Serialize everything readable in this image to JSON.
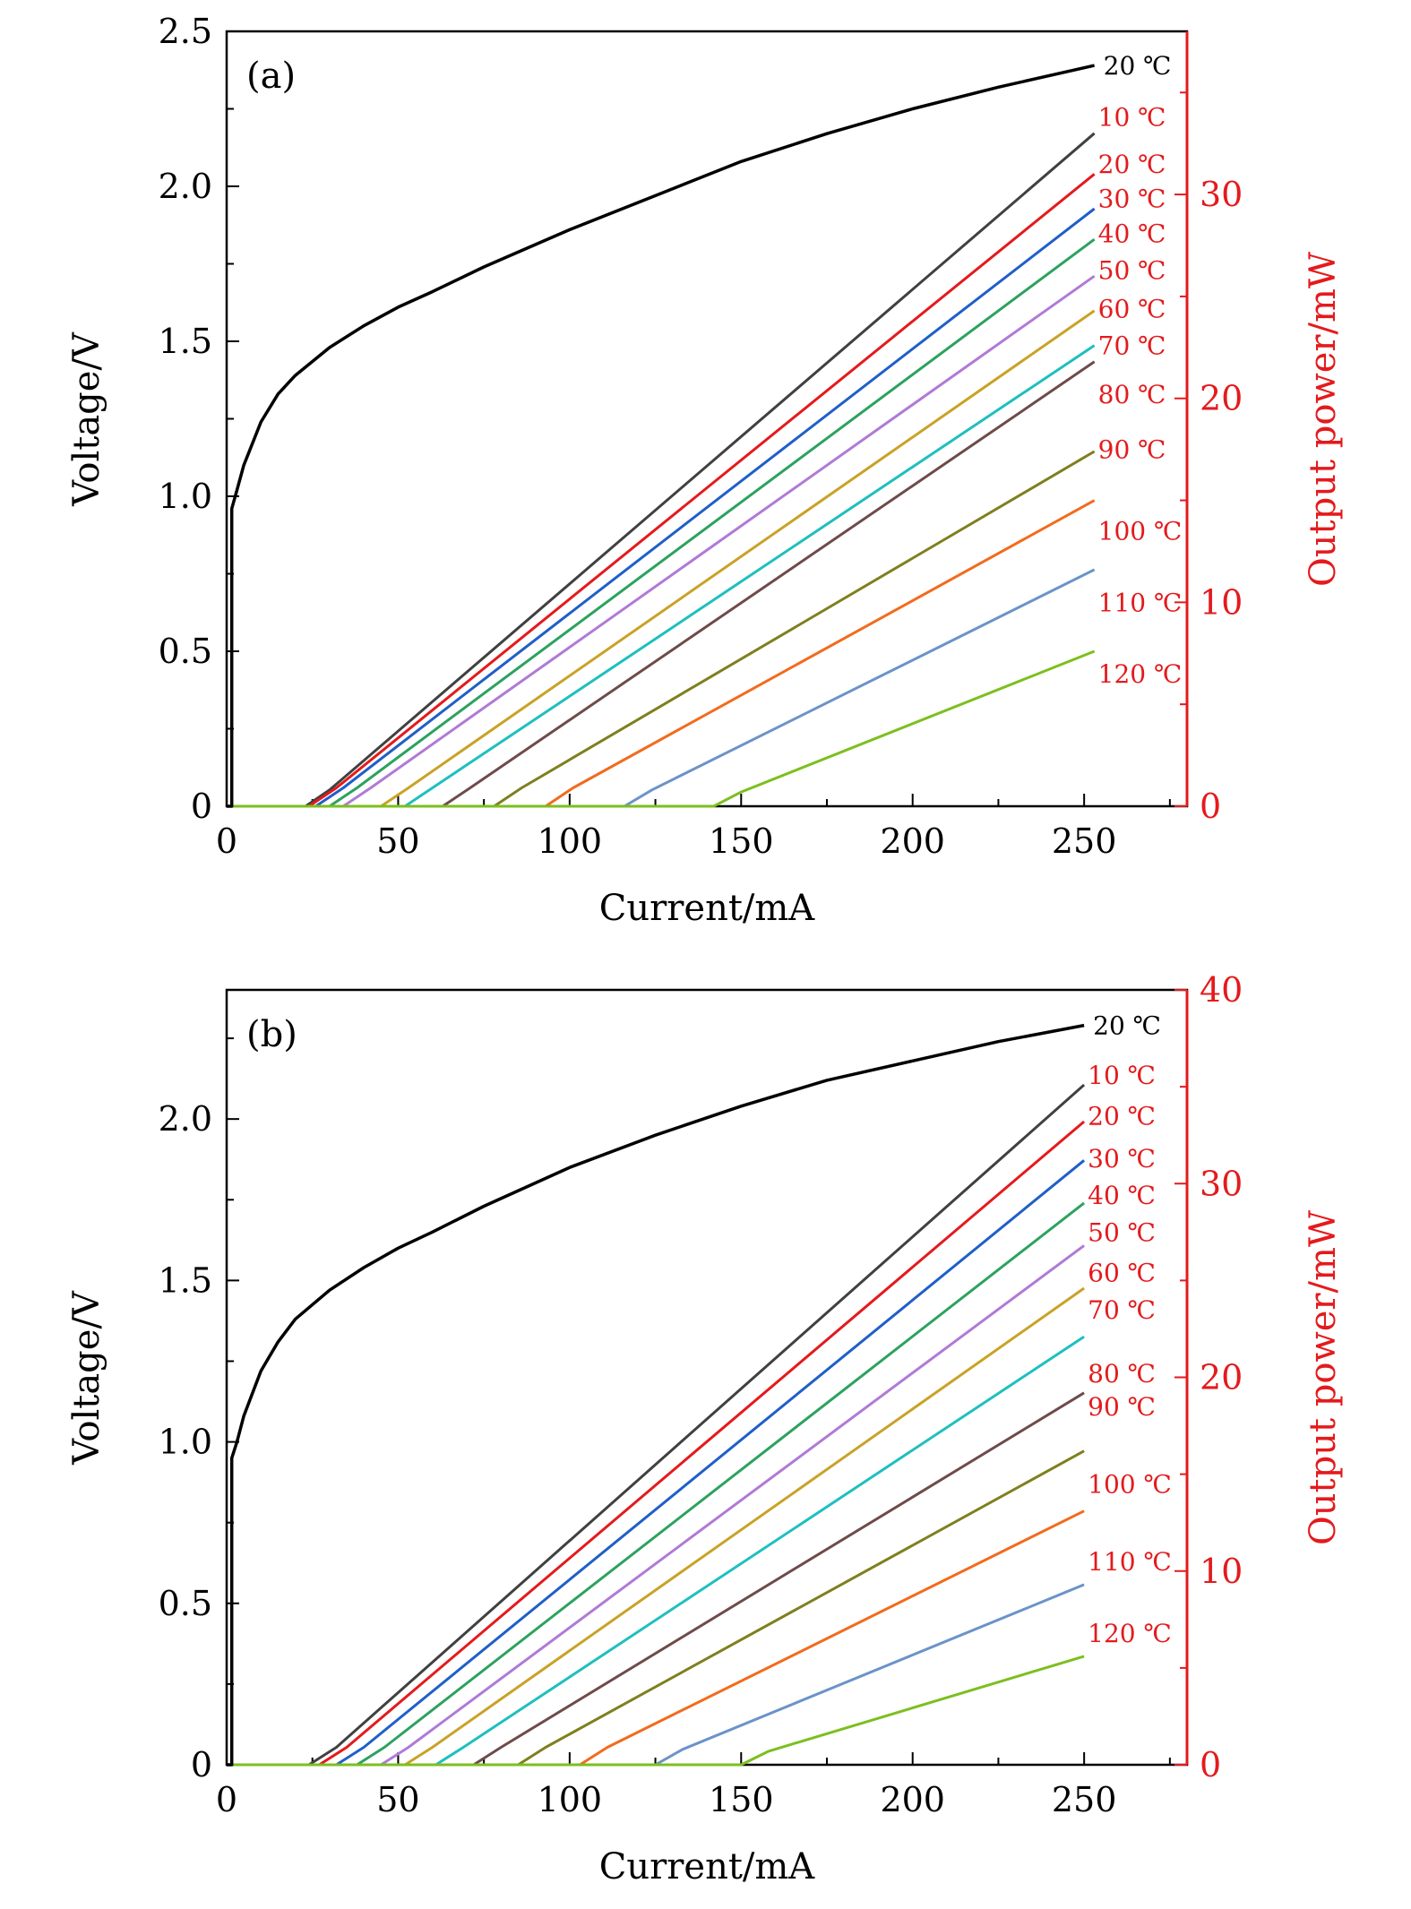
{
  "chart_data": [
    {
      "type": "line",
      "panel_label": "(a)",
      "xlabel": "Current/mA",
      "ylabel": "Voltage/V",
      "y2label": "Output power/mW",
      "xlim": [
        0,
        280
      ],
      "ylim": [
        0,
        2.5
      ],
      "y2lim": [
        0,
        38
      ],
      "x_ticks": [
        "0",
        "50",
        "100",
        "150",
        "200",
        "250"
      ],
      "y_ticks": [
        "0",
        "0.5",
        "1.0",
        "1.5",
        "2.0",
        "2.5"
      ],
      "y2_ticks": [
        "0",
        "10",
        "20",
        "30"
      ],
      "voltage_series": {
        "name": "20 ℃",
        "color": "#000000",
        "label_y": 2.39,
        "points": [
          [
            1.5,
            0
          ],
          [
            1.5,
            0.96
          ],
          [
            3,
            1.02
          ],
          [
            5,
            1.1
          ],
          [
            10,
            1.24
          ],
          [
            15,
            1.33
          ],
          [
            20,
            1.39
          ],
          [
            30,
            1.48
          ],
          [
            40,
            1.55
          ],
          [
            50,
            1.61
          ],
          [
            60,
            1.66
          ],
          [
            75,
            1.74
          ],
          [
            100,
            1.86
          ],
          [
            125,
            1.97
          ],
          [
            150,
            2.08
          ],
          [
            175,
            2.17
          ],
          [
            200,
            2.25
          ],
          [
            225,
            2.32
          ],
          [
            253,
            2.39
          ]
        ]
      },
      "power_series": [
        {
          "name": "10 ℃",
          "color": "#404040",
          "threshold": 23,
          "power": [
            [
              23,
              0
            ],
            [
              30,
              0.8
            ],
            [
              253,
              33
            ]
          ],
          "label_y": 33.8
        },
        {
          "name": "20 ℃",
          "color": "#e41a1c",
          "threshold": 24,
          "power": [
            [
              24,
              0
            ],
            [
              32,
              0.9
            ],
            [
              253,
              31
            ]
          ],
          "label_y": 31.5
        },
        {
          "name": "30 ℃",
          "color": "#1f5fc8",
          "threshold": 26,
          "power": [
            [
              26,
              0
            ],
            [
              34,
              0.9
            ],
            [
              253,
              29.3
            ]
          ],
          "label_y": 29.8
        },
        {
          "name": "40 ℃",
          "color": "#2ca25f",
          "threshold": 30,
          "power": [
            [
              30,
              0
            ],
            [
              38,
              0.9
            ],
            [
              253,
              27.8
            ]
          ],
          "label_y": 28.1
        },
        {
          "name": "50 ℃",
          "color": "#b07ad6",
          "threshold": 34,
          "power": [
            [
              34,
              0
            ],
            [
              42,
              0.9
            ],
            [
              253,
              26
            ]
          ],
          "label_y": 26.3
        },
        {
          "name": "60 ℃",
          "color": "#c9a227",
          "threshold": 45,
          "power": [
            [
              45,
              0
            ],
            [
              53,
              0.9
            ],
            [
              253,
              24.3
            ]
          ],
          "label_y": 24.4
        },
        {
          "name": "70 ℃",
          "color": "#1fbfbf",
          "threshold": 52,
          "power": [
            [
              52,
              0
            ],
            [
              60,
              0.9
            ],
            [
              253,
              22.6
            ]
          ],
          "label_y": 22.6
        },
        {
          "name": "80 ℃",
          "color": "#6e4b4b",
          "threshold": 63,
          "power": [
            [
              63,
              0
            ],
            [
              71,
              0.9
            ],
            [
              253,
              21.8
            ]
          ],
          "label_y": 20.2
        },
        {
          "name": "90 ℃",
          "color": "#7f7f1f",
          "threshold": 78,
          "power": [
            [
              78,
              0
            ],
            [
              86,
              0.9
            ],
            [
              253,
              17.4
            ]
          ],
          "label_y": 17.5
        },
        {
          "name": "100 ℃",
          "color": "#f26b1d",
          "threshold": 93,
          "power": [
            [
              93,
              0
            ],
            [
              101,
              0.9
            ],
            [
              253,
              15
            ]
          ],
          "label_y": 13.5
        },
        {
          "name": "110 ℃",
          "color": "#6a93c9",
          "threshold": 116,
          "power": [
            [
              116,
              0
            ],
            [
              124,
              0.8
            ],
            [
              253,
              11.6
            ]
          ],
          "label_y": 10
        },
        {
          "name": "120 ℃",
          "color": "#7cbf1e",
          "threshold": 142,
          "power": [
            [
              142,
              0
            ],
            [
              150,
              0.7
            ],
            [
              253,
              7.6
            ]
          ],
          "label_y": 6.5
        }
      ]
    },
    {
      "type": "line",
      "panel_label": "(b)",
      "xlabel": "Current/mA",
      "ylabel": "Voltage/V",
      "y2label": "Output power/mW",
      "xlim": [
        0,
        280
      ],
      "ylim": [
        0,
        2.4
      ],
      "y2lim": [
        0,
        40
      ],
      "x_ticks": [
        "0",
        "50",
        "100",
        "150",
        "200",
        "250"
      ],
      "y_ticks": [
        "0",
        "0.5",
        "1.0",
        "1.5",
        "2.0"
      ],
      "y2_ticks": [
        "0",
        "10",
        "20",
        "30",
        "40"
      ],
      "voltage_series": {
        "name": "20 ℃",
        "color": "#000000",
        "label_y": 2.29,
        "points": [
          [
            1.5,
            0
          ],
          [
            1.5,
            0.95
          ],
          [
            3,
            1.0
          ],
          [
            5,
            1.08
          ],
          [
            10,
            1.22
          ],
          [
            15,
            1.31
          ],
          [
            20,
            1.38
          ],
          [
            30,
            1.47
          ],
          [
            40,
            1.54
          ],
          [
            50,
            1.6
          ],
          [
            60,
            1.65
          ],
          [
            75,
            1.73
          ],
          [
            100,
            1.85
          ],
          [
            125,
            1.95
          ],
          [
            150,
            2.04
          ],
          [
            175,
            2.12
          ],
          [
            200,
            2.18
          ],
          [
            225,
            2.24
          ],
          [
            250,
            2.29
          ]
        ]
      },
      "power_series": [
        {
          "name": "10 ℃",
          "color": "#404040",
          "threshold": 24,
          "power": [
            [
              24,
              0
            ],
            [
              32,
              0.9
            ],
            [
              250,
              35.1
            ]
          ],
          "label_y": 35.6
        },
        {
          "name": "20 ℃",
          "color": "#e41a1c",
          "threshold": 27,
          "power": [
            [
              27,
              0
            ],
            [
              35,
              0.9
            ],
            [
              250,
              33.2
            ]
          ],
          "label_y": 33.5
        },
        {
          "name": "30 ℃",
          "color": "#1f5fc8",
          "threshold": 32,
          "power": [
            [
              32,
              0
            ],
            [
              40,
              0.9
            ],
            [
              250,
              31.2
            ]
          ],
          "label_y": 31.3
        },
        {
          "name": "40 ℃",
          "color": "#2ca25f",
          "threshold": 38,
          "power": [
            [
              38,
              0
            ],
            [
              46,
              0.9
            ],
            [
              250,
              29
            ]
          ],
          "label_y": 29.4
        },
        {
          "name": "50 ℃",
          "color": "#b07ad6",
          "threshold": 45,
          "power": [
            [
              45,
              0
            ],
            [
              53,
              0.9
            ],
            [
              250,
              26.8
            ]
          ],
          "label_y": 27.5
        },
        {
          "name": "60 ℃",
          "color": "#c9a227",
          "threshold": 52,
          "power": [
            [
              52,
              0
            ],
            [
              60,
              0.9
            ],
            [
              250,
              24.6
            ]
          ],
          "label_y": 25.4
        },
        {
          "name": "70 ℃",
          "color": "#1fbfbf",
          "threshold": 61,
          "power": [
            [
              61,
              0
            ],
            [
              69,
              0.9
            ],
            [
              250,
              22.1
            ]
          ],
          "label_y": 23.5
        },
        {
          "name": "80 ℃",
          "color": "#6e4b4b",
          "threshold": 72,
          "power": [
            [
              72,
              0
            ],
            [
              80,
              0.9
            ],
            [
              250,
              19.2
            ]
          ],
          "label_y": 20.2
        },
        {
          "name": "90 ℃",
          "color": "#7f7f1f",
          "threshold": 85,
          "power": [
            [
              85,
              0
            ],
            [
              93,
              0.9
            ],
            [
              250,
              16.2
            ]
          ],
          "label_y": 18.5
        },
        {
          "name": "100 ℃",
          "color": "#f26b1d",
          "threshold": 103,
          "power": [
            [
              103,
              0
            ],
            [
              111,
              0.9
            ],
            [
              250,
              13.1
            ]
          ],
          "label_y": 14.5
        },
        {
          "name": "110 ℃",
          "color": "#6a93c9",
          "threshold": 125,
          "power": [
            [
              125,
              0
            ],
            [
              133,
              0.8
            ],
            [
              250,
              9.3
            ]
          ],
          "label_y": 10.5
        },
        {
          "name": "120 ℃",
          "color": "#7cbf1e",
          "threshold": 150,
          "power": [
            [
              150,
              0
            ],
            [
              158,
              0.7
            ],
            [
              250,
              5.6
            ]
          ],
          "label_y": 6.8
        }
      ]
    }
  ],
  "colors": {
    "axis": "#000000",
    "right_axis": "#e41a1c",
    "label_red": "#e41a1c"
  }
}
